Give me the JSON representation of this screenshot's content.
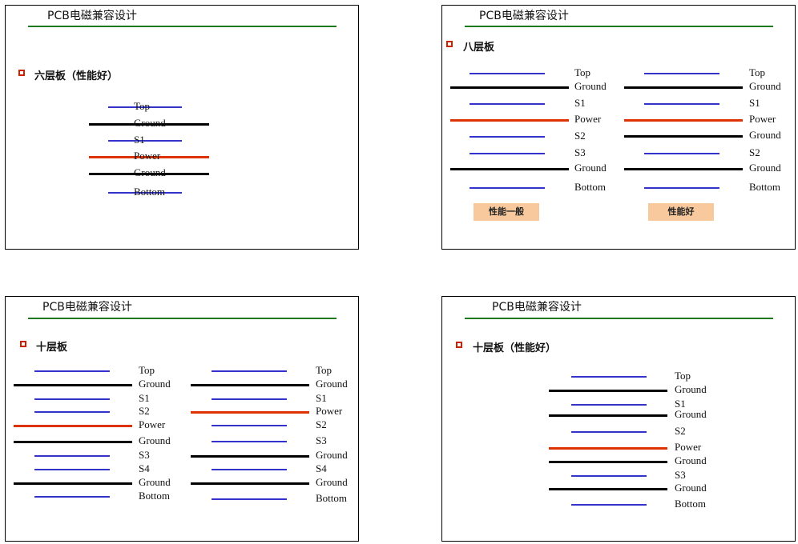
{
  "slides": [
    {
      "title": "PCB电磁兼容设计",
      "heading": "六层板（性能好）",
      "stacks": [
        {
          "layers": [
            {
              "label": "Top",
              "type": "signal"
            },
            {
              "label": "Ground",
              "type": "ground"
            },
            {
              "label": "S1",
              "type": "signal"
            },
            {
              "label": "Power",
              "type": "power"
            },
            {
              "label": "Ground",
              "type": "ground"
            },
            {
              "label": "Bottom",
              "type": "signal"
            }
          ]
        }
      ]
    },
    {
      "title": "PCB电磁兼容设计",
      "heading": "八层板",
      "stacks": [
        {
          "badge": "性能一般",
          "layers": [
            {
              "label": "Top",
              "type": "signal"
            },
            {
              "label": "Ground",
              "type": "ground"
            },
            {
              "label": "S1",
              "type": "signal"
            },
            {
              "label": "Power",
              "type": "power"
            },
            {
              "label": "S2",
              "type": "signal"
            },
            {
              "label": "S3",
              "type": "signal"
            },
            {
              "label": "Ground",
              "type": "ground"
            },
            {
              "label": "Bottom",
              "type": "signal"
            }
          ]
        },
        {
          "badge": "性能好",
          "layers": [
            {
              "label": "Top",
              "type": "signal"
            },
            {
              "label": "Ground",
              "type": "ground"
            },
            {
              "label": "S1",
              "type": "signal"
            },
            {
              "label": "Power",
              "type": "power"
            },
            {
              "label": "Ground",
              "type": "ground"
            },
            {
              "label": "S2",
              "type": "signal"
            },
            {
              "label": "Ground",
              "type": "ground"
            },
            {
              "label": "Bottom",
              "type": "signal"
            }
          ]
        }
      ]
    },
    {
      "title": "PCB电磁兼容设计",
      "heading": "十层板",
      "stacks": [
        {
          "layers": [
            {
              "label": "Top",
              "type": "signal"
            },
            {
              "label": "Ground",
              "type": "ground"
            },
            {
              "label": "S1",
              "type": "signal"
            },
            {
              "label": "S2",
              "type": "signal"
            },
            {
              "label": "Power",
              "type": "power"
            },
            {
              "label": "Ground",
              "type": "ground"
            },
            {
              "label": "S3",
              "type": "signal"
            },
            {
              "label": "S4",
              "type": "signal"
            },
            {
              "label": "Ground",
              "type": "ground"
            },
            {
              "label": "Bottom",
              "type": "signal"
            }
          ]
        },
        {
          "layers": [
            {
              "label": "Top",
              "type": "signal"
            },
            {
              "label": "Ground",
              "type": "ground"
            },
            {
              "label": "S1",
              "type": "signal"
            },
            {
              "label": "Power",
              "type": "power"
            },
            {
              "label": "S2",
              "type": "signal"
            },
            {
              "label": "S3",
              "type": "signal"
            },
            {
              "label": "Ground",
              "type": "ground"
            },
            {
              "label": "S4",
              "type": "signal"
            },
            {
              "label": "Ground",
              "type": "ground"
            },
            {
              "label": "Bottom",
              "type": "signal"
            }
          ]
        }
      ]
    },
    {
      "title": "PCB电磁兼容设计",
      "heading": "十层板（性能好）",
      "stacks": [
        {
          "layers": [
            {
              "label": "Top",
              "type": "signal"
            },
            {
              "label": "Ground",
              "type": "ground"
            },
            {
              "label": "S1",
              "type": "signal"
            },
            {
              "label": "Ground",
              "type": "ground"
            },
            {
              "label": "S2",
              "type": "signal"
            },
            {
              "label": "Power",
              "type": "power"
            },
            {
              "label": "Ground",
              "type": "ground"
            },
            {
              "label": "S3",
              "type": "signal"
            },
            {
              "label": "Ground",
              "type": "ground"
            },
            {
              "label": "Bottom",
              "type": "signal"
            }
          ]
        }
      ]
    }
  ]
}
